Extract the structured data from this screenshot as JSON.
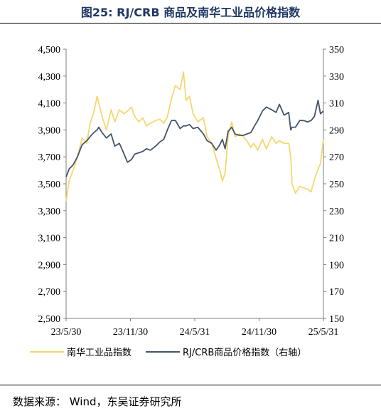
{
  "title": "图25:  RJ/CRB 商品及南华工业品价格指数",
  "source": "数据来源：  Wind，东吴证券研究所",
  "chart_data": {
    "type": "line",
    "x_tick_labels": [
      "23/5/30",
      "23/11/30",
      "24/5/31",
      "24/11/30",
      "25/5/31"
    ],
    "x_range": [
      "2023-05-30",
      "2025-07-10"
    ],
    "left_axis": {
      "ylim": [
        2500,
        4500
      ],
      "ticks": [
        "2,500",
        "2,700",
        "2,900",
        "3,100",
        "3,300",
        "3,500",
        "3,700",
        "3,900",
        "4,100",
        "4,300",
        "4,500"
      ]
    },
    "right_axis": {
      "ylim": [
        150,
        350
      ],
      "ticks": [
        "150",
        "170",
        "190",
        "210",
        "230",
        "250",
        "270",
        "290",
        "310",
        "330",
        "350"
      ]
    },
    "series": [
      {
        "name": "南华工业品指数",
        "axis": "left",
        "color": "#F5D76E",
        "x": [
          "2023-05-30",
          "2023-06-08",
          "2023-06-20",
          "2023-07-03",
          "2023-07-17",
          "2023-07-31",
          "2023-08-10",
          "2023-08-21",
          "2023-08-31",
          "2023-09-05",
          "2023-09-15",
          "2023-09-28",
          "2023-10-12",
          "2023-10-23",
          "2023-11-06",
          "2023-11-20",
          "2023-11-30",
          "2023-12-12",
          "2023-12-22",
          "2024-01-03",
          "2024-01-15",
          "2024-01-26",
          "2024-02-07",
          "2024-02-23",
          "2024-03-06",
          "2024-03-18",
          "2024-03-29",
          "2024-04-10",
          "2024-04-22",
          "2024-05-06",
          "2024-05-16",
          "2024-05-24",
          "2024-06-03",
          "2024-06-14",
          "2024-06-28",
          "2024-07-15",
          "2024-07-26",
          "2024-08-09",
          "2024-08-22",
          "2024-09-02",
          "2024-09-10",
          "2024-09-18",
          "2024-09-27",
          "2024-10-08",
          "2024-10-18",
          "2024-10-31",
          "2024-11-12",
          "2024-11-22",
          "2024-12-04",
          "2024-12-13",
          "2024-12-25",
          "2025-01-08",
          "2025-01-20",
          "2025-02-05",
          "2025-02-18",
          "2025-02-28",
          "2025-03-14",
          "2025-03-28",
          "2025-04-03",
          "2025-04-07",
          "2025-04-17",
          "2025-04-30",
          "2025-05-12",
          "2025-05-23",
          "2025-06-03",
          "2025-06-13",
          "2025-06-24",
          "2025-07-01",
          "2025-07-10"
        ],
        "y": [
          3370,
          3520,
          3600,
          3700,
          3840,
          3800,
          3950,
          4030,
          4150,
          4100,
          4000,
          3900,
          4050,
          3960,
          4050,
          4020,
          4040,
          4070,
          4000,
          3960,
          3990,
          3930,
          3950,
          3970,
          3980,
          3950,
          4000,
          4130,
          4230,
          4200,
          4330,
          4120,
          4150,
          4020,
          3960,
          3990,
          3850,
          3800,
          3690,
          3600,
          3520,
          3580,
          3850,
          3960,
          3850,
          3870,
          3850,
          3820,
          3770,
          3800,
          3750,
          3830,
          3760,
          3850,
          3800,
          3820,
          3800,
          3800,
          3700,
          3500,
          3430,
          3480,
          3470,
          3460,
          3440,
          3530,
          3610,
          3650,
          3830
        ]
      },
      {
        "name": "RJ/CRB商品价格指数（右轴）",
        "axis": "right",
        "color": "#44546A",
        "x": [
          "2023-05-30",
          "2023-06-08",
          "2023-06-20",
          "2023-07-03",
          "2023-07-17",
          "2023-07-31",
          "2023-08-10",
          "2023-08-21",
          "2023-08-31",
          "2023-09-05",
          "2023-09-15",
          "2023-09-28",
          "2023-10-12",
          "2023-10-23",
          "2023-11-06",
          "2023-11-20",
          "2023-11-30",
          "2023-12-12",
          "2023-12-22",
          "2024-01-03",
          "2024-01-15",
          "2024-01-26",
          "2024-02-07",
          "2024-02-23",
          "2024-03-06",
          "2024-03-18",
          "2024-03-29",
          "2024-04-10",
          "2024-04-22",
          "2024-05-06",
          "2024-05-16",
          "2024-05-24",
          "2024-06-03",
          "2024-06-14",
          "2024-06-28",
          "2024-07-15",
          "2024-07-26",
          "2024-08-09",
          "2024-08-22",
          "2024-09-02",
          "2024-09-10",
          "2024-09-18",
          "2024-09-27",
          "2024-10-08",
          "2024-10-18",
          "2024-10-31",
          "2024-11-12",
          "2024-11-22",
          "2024-12-04",
          "2024-12-13",
          "2024-12-25",
          "2025-01-08",
          "2025-01-20",
          "2025-02-05",
          "2025-02-18",
          "2025-02-28",
          "2025-03-14",
          "2025-03-28",
          "2025-04-03",
          "2025-04-07",
          "2025-04-17",
          "2025-04-30",
          "2025-05-12",
          "2025-05-23",
          "2025-06-03",
          "2025-06-13",
          "2025-06-24",
          "2025-07-01",
          "2025-07-10"
        ],
        "y": [
          255,
          261,
          264,
          270,
          279,
          282,
          285,
          288,
          290,
          292,
          288,
          284,
          287,
          278,
          280,
          272,
          266,
          268,
          272,
          273,
          274,
          276,
          275,
          278,
          281,
          283,
          290,
          297,
          297,
          291,
          293,
          293,
          294,
          291,
          292,
          287,
          282,
          280,
          275,
          279,
          283,
          276,
          289,
          292,
          287,
          286,
          286,
          287,
          288,
          292,
          297,
          304,
          307,
          305,
          303,
          309,
          301,
          303,
          290,
          292,
          292,
          297,
          297,
          296,
          297,
          300,
          312,
          302,
          304
        ]
      }
    ]
  },
  "legend": [
    {
      "label": "南华工业品指数",
      "color": "#F5D76E"
    },
    {
      "label": "RJ/CRB商品价格指数（右轴）",
      "color": "#44546A"
    }
  ]
}
